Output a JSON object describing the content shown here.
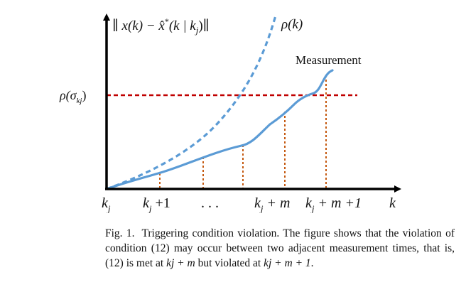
{
  "figure": {
    "y_axis_label": "∥ x(k) − x̂*(k | kj)∥",
    "y_axis_parts": {
      "open": "∥ ",
      "x_of_k": "x(k) − ",
      "xhat": "x̂",
      "star": "*",
      "args": "(k | k",
      "sub": "j",
      "close": ")∥"
    },
    "x_axis_label": "k",
    "rho_curve_label": "ρ(k)",
    "threshold_label": "ρ(σkj)",
    "threshold_parts": {
      "main": "ρ(σ",
      "sub": "kj",
      "close": ")"
    },
    "measurement_label": "Measurement",
    "ticks": [
      {
        "base": "k",
        "sub": "j",
        "suffix": ""
      },
      {
        "base": "k",
        "sub": "j",
        "suffix": " +1"
      },
      {
        "base": "",
        "sub": "",
        "suffix": ". . ."
      },
      {
        "base": "k",
        "sub": "j",
        "suffix": " + m"
      },
      {
        "base": "k",
        "sub": "j",
        "suffix": " + m +1"
      }
    ],
    "colors": {
      "axes": "#000000",
      "error_curve": "#5b9bd5",
      "rho_curve": "#5b9bd5",
      "threshold": "#c00000",
      "measurement_lines": "#c55a11"
    }
  },
  "caption": {
    "label": "Fig. 1.",
    "text_1": "Triggering condition violation. The figure shows that the violation of condition (12) may occur between two adjacent measurement times, that is, (12) is met at ",
    "at_m": "kj + m",
    "text_2": " but violated at ",
    "at_m1": "kj + m + 1",
    "text_3": "."
  }
}
